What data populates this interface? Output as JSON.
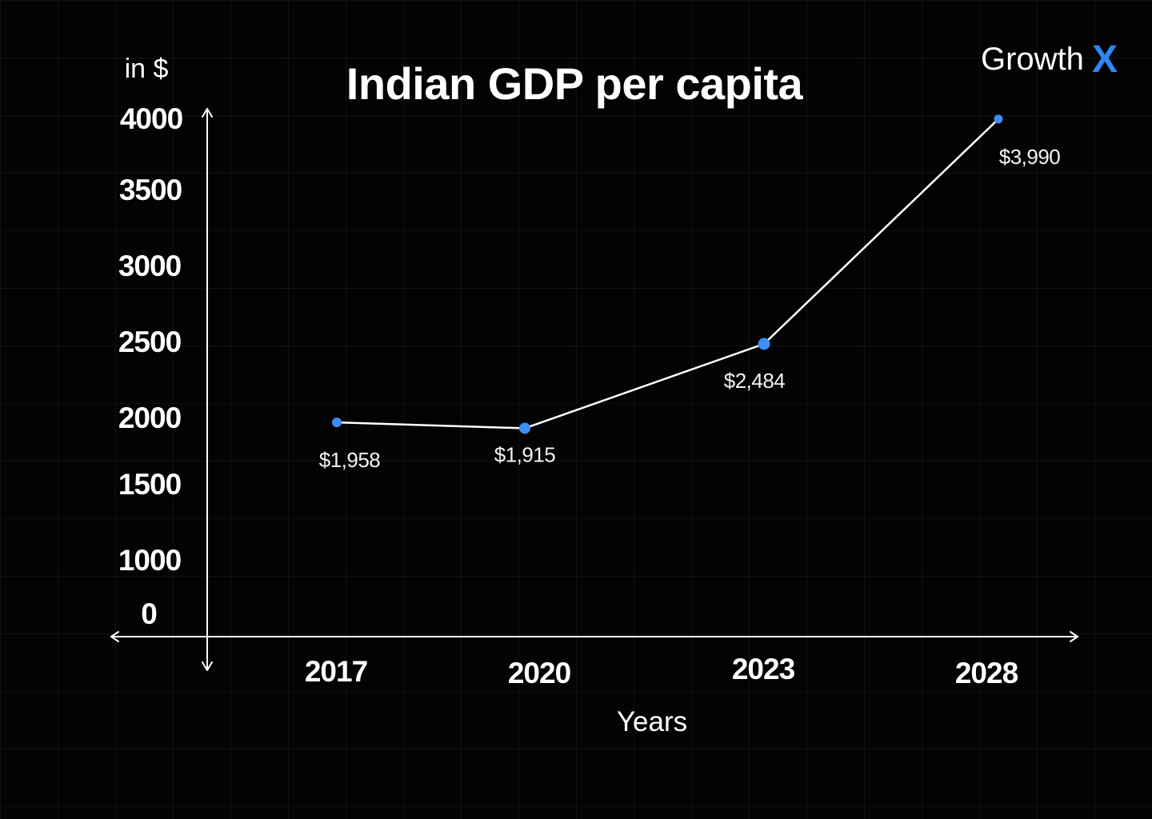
{
  "brand": {
    "name": "Growth",
    "accent_letter": "X",
    "accent_color": "#2f86f6"
  },
  "colors": {
    "background": "#030303",
    "line": "#ffffff",
    "marker": "#3b8ff7"
  },
  "chart_data": {
    "type": "line",
    "title": "Indian GDP per capita",
    "ylabel": "in $",
    "xlabel": "Years",
    "categories": [
      "2017",
      "2020",
      "2023",
      "2028"
    ],
    "series": [
      {
        "name": "GDP per capita",
        "values": [
          1958,
          1915,
          2484,
          3990
        ],
        "labels": [
          "$1,958",
          "$1,915",
          "$2,484",
          "$3,990"
        ]
      }
    ],
    "yticks": [
      "4000",
      "3500",
      "3000",
      "2500",
      "2000",
      "1500",
      "1000",
      "0"
    ],
    "grid": false,
    "legend": "none"
  }
}
